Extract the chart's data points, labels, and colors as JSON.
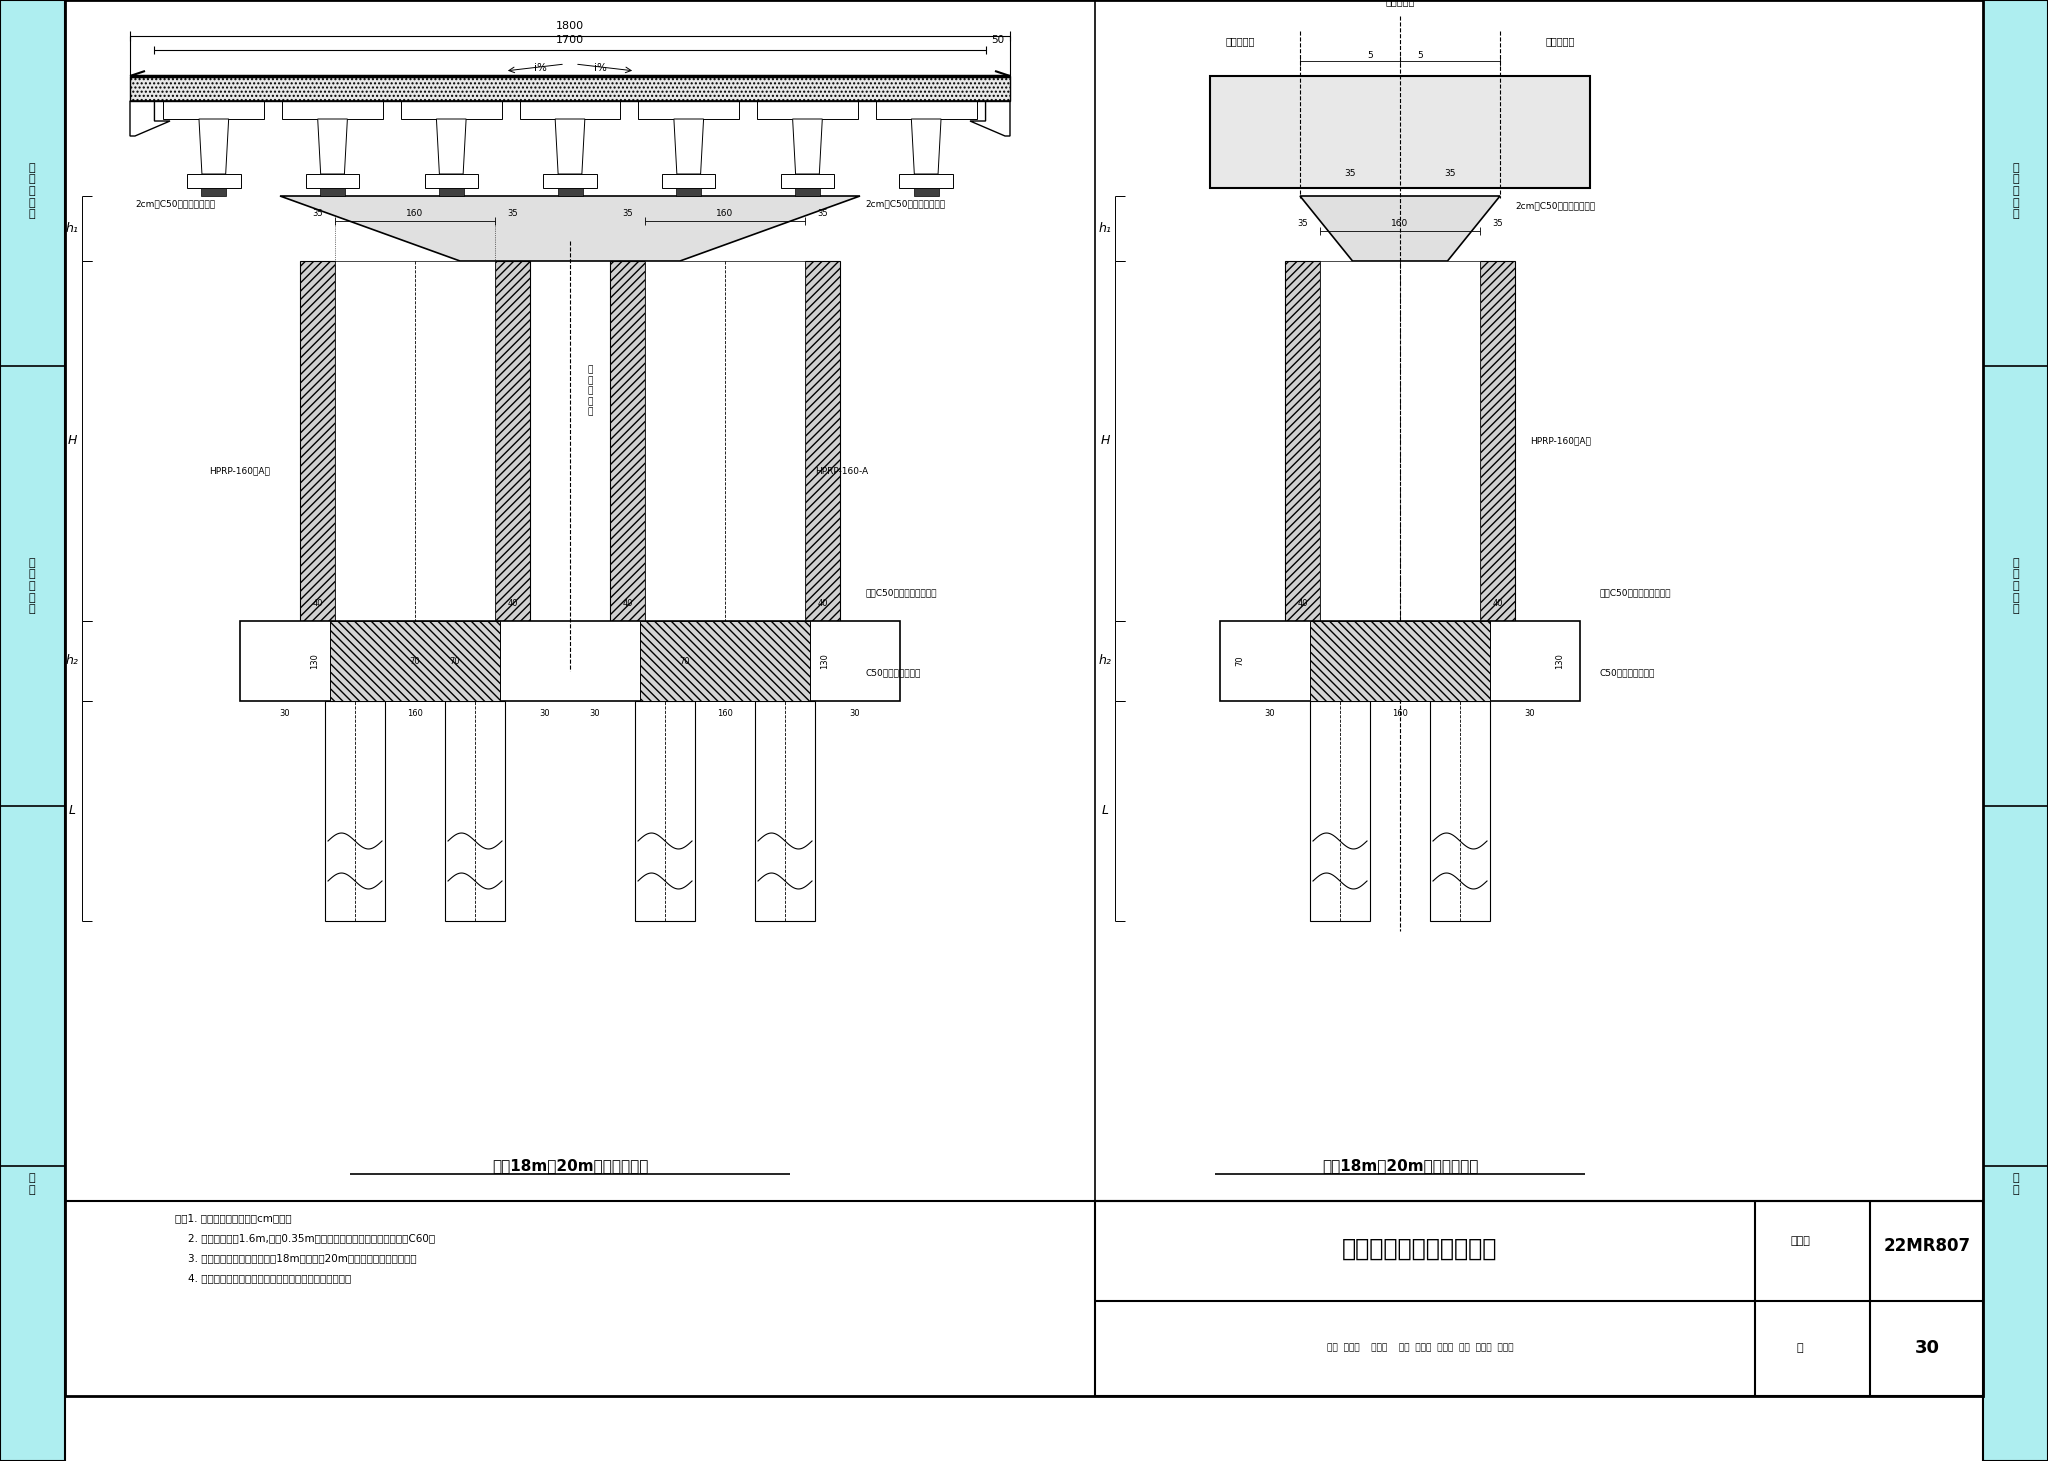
{
  "title": "典型结构推荐断面示意图",
  "atlas_no": "22MR807",
  "page": "30",
  "page_label": "页",
  "cross_section_title": "桥宽18m（20m跨度）断面图",
  "side_view_title": "桥宽18m（20m跨度）侧面图",
  "notes": [
    "注：1. 本图尺寸均以厘米（cm）计。",
    "    2. 桥墩采用直径1.6m,壁厚0.35m的方型预制墩，混凝土强度等级为C60。",
    "    3. 本图适用于上部结构为桥宽18m，跨度为20m的预应力混凝土小箱梁。",
    "    4. 本图仅为示意参考，图中参数根据工程实际情况确定。"
  ],
  "bg_color": "#ffffff",
  "cyan_color": "#aeeef0",
  "hatch_color": "#555555",
  "dim_1800": "1800",
  "dim_1700": "1700",
  "dim_50": "50",
  "dim_160": "160",
  "dim_35": "35",
  "dim_40": "40",
  "dim_30": "30",
  "dim_130": "130",
  "dim_70": "70",
  "hprp_label": "HPRP-160（A）",
  "hprp_label2": "HPRP-160-A",
  "label_2cm": "2cm厚C50环氧砂浆调平层",
  "label_c50": "C50环氧砂浆调平层",
  "label_post_c50": "后浇C50无收缩细石混凝土",
  "label_design_center": "设\n计\n中\n心\n线",
  "label_bridge_center": "桥跨中心线",
  "label_support_l": "支座中心线",
  "label_support_r": "支座中心线"
}
